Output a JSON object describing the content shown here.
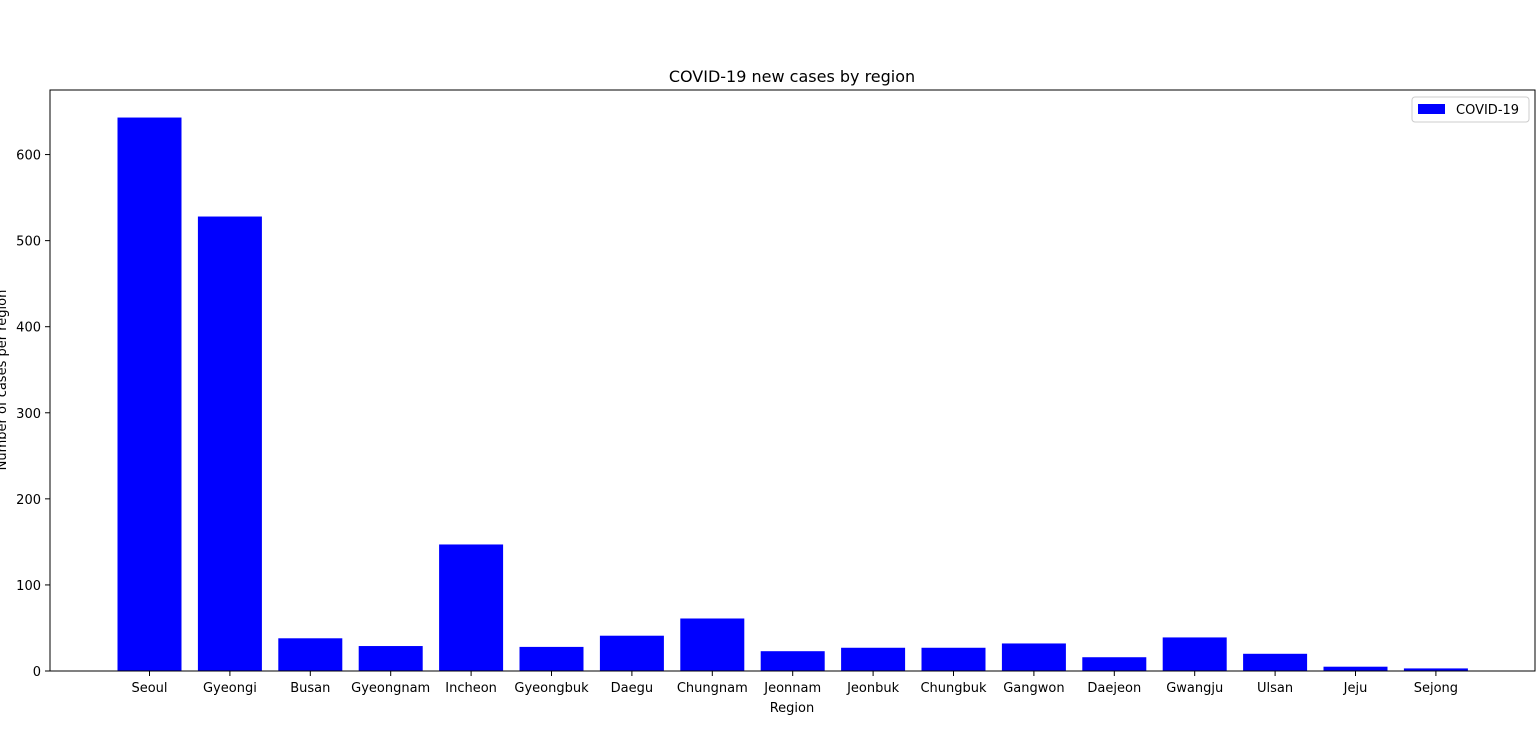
{
  "chart_data": {
    "type": "bar",
    "title": "COVID-19 new cases by region",
    "xlabel": "Region",
    "ylabel": "Number of cases per region",
    "categories": [
      "Seoul",
      "Gyeongi",
      "Busan",
      "Gyeongnam",
      "Incheon",
      "Gyeongbuk",
      "Daegu",
      "Chungnam",
      "Jeonnam",
      "Jeonbuk",
      "Chungbuk",
      "Gangwon",
      "Daejeon",
      "Gwangju",
      "Ulsan",
      "Jeju",
      "Sejong"
    ],
    "series": [
      {
        "name": "COVID-19",
        "color": "#0000ff",
        "values": [
          643,
          528,
          38,
          29,
          147,
          28,
          41,
          61,
          23,
          27,
          27,
          32,
          16,
          39,
          20,
          5,
          3
        ]
      }
    ],
    "ylim": [
      0,
      675
    ],
    "yticks": [
      0,
      100,
      200,
      300,
      400,
      500,
      600
    ],
    "grid": false,
    "legend_position": "top-right"
  }
}
